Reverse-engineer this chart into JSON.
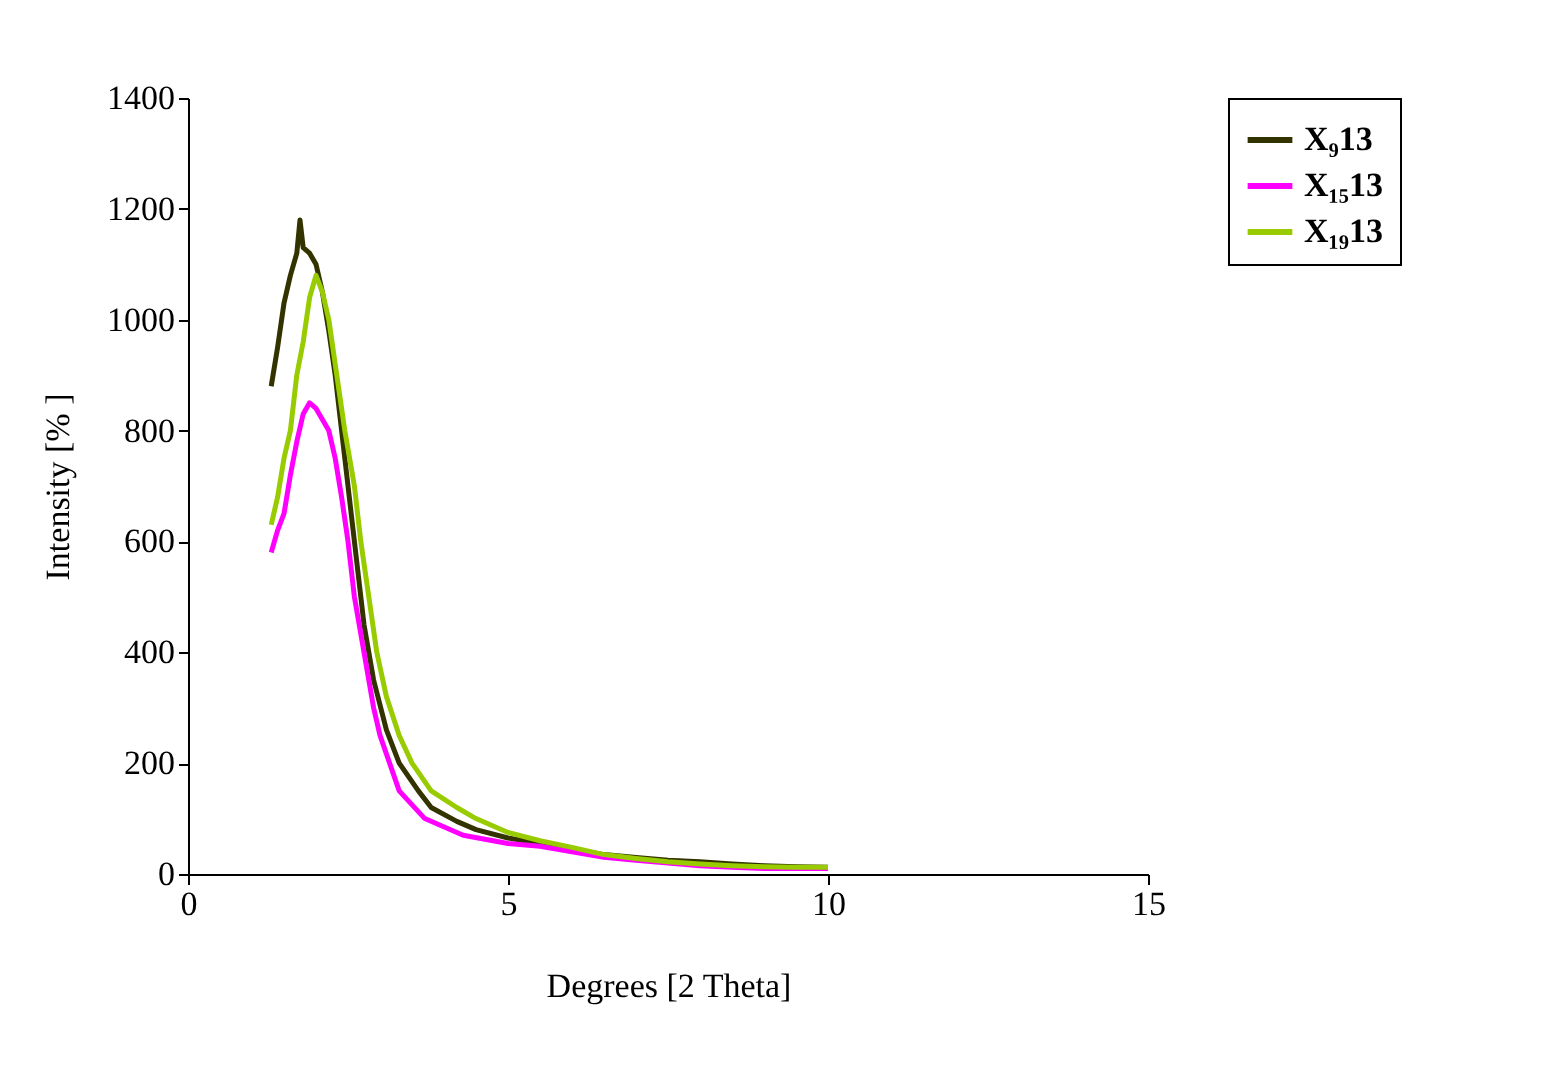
{
  "chart_data": {
    "type": "line",
    "xlabel": "Degrees [2 Theta]",
    "ylabel": "Intensity [% ]",
    "xlim": [
      0,
      15
    ],
    "xticks": [
      0,
      5,
      10,
      15
    ],
    "ylim": [
      0,
      1400
    ],
    "yticks": [
      0,
      200,
      400,
      600,
      800,
      1000,
      1200,
      1400
    ],
    "grid": false,
    "legend": "right",
    "marker": "none",
    "line_style": "solid",
    "series": [
      {
        "name": "X₉13",
        "color": "#333300",
        "x": [
          1.3,
          1.4,
          1.5,
          1.6,
          1.7,
          1.75,
          1.8,
          1.9,
          2.0,
          2.1,
          2.2,
          2.3,
          2.45,
          2.6,
          2.75,
          2.9,
          3.1,
          3.3,
          3.6,
          3.8,
          4.2,
          4.5,
          5.0,
          5.5,
          6.0,
          6.5,
          7.0,
          7.5,
          8.0,
          8.5,
          9.0,
          9.5,
          10.0
        ],
        "values": [
          880,
          950,
          1030,
          1080,
          1120,
          1180,
          1130,
          1120,
          1100,
          1050,
          980,
          900,
          750,
          600,
          450,
          350,
          260,
          200,
          150,
          120,
          95,
          80,
          65,
          55,
          45,
          35,
          30,
          25,
          22,
          18,
          15,
          13,
          12
        ]
      },
      {
        "name": "X₁₅13",
        "color": "#ff00ff",
        "x": [
          1.3,
          1.4,
          1.5,
          1.6,
          1.7,
          1.8,
          1.9,
          2.0,
          2.1,
          2.2,
          2.3,
          2.4,
          2.5,
          2.6,
          2.75,
          2.9,
          3.0,
          3.3,
          3.7,
          4.3,
          5.0,
          5.5,
          6.0,
          6.5,
          7.0,
          7.5,
          8.0,
          8.5,
          9.0,
          9.5,
          10.0
        ],
        "values": [
          580,
          620,
          650,
          720,
          780,
          830,
          850,
          840,
          820,
          800,
          750,
          680,
          600,
          500,
          400,
          300,
          250,
          150,
          100,
          70,
          55,
          50,
          40,
          30,
          25,
          20,
          15,
          12,
          10,
          10,
          10
        ]
      },
      {
        "name": "X₁₉13",
        "color": "#99cc00",
        "x": [
          1.3,
          1.4,
          1.5,
          1.6,
          1.7,
          1.8,
          1.85,
          1.9,
          2.0,
          2.1,
          2.2,
          2.3,
          2.45,
          2.6,
          2.7,
          2.85,
          2.95,
          3.1,
          3.3,
          3.5,
          3.8,
          4.2,
          4.5,
          5.0,
          5.5,
          6.0,
          6.5,
          7.0,
          7.5,
          8.0,
          8.5,
          9.0,
          9.5,
          10.0
        ],
        "values": [
          630,
          680,
          750,
          800,
          900,
          960,
          1000,
          1040,
          1080,
          1050,
          1000,
          920,
          800,
          700,
          600,
          480,
          400,
          320,
          250,
          200,
          150,
          120,
          100,
          75,
          60,
          48,
          35,
          28,
          22,
          18,
          15,
          13,
          12,
          12
        ]
      }
    ]
  }
}
